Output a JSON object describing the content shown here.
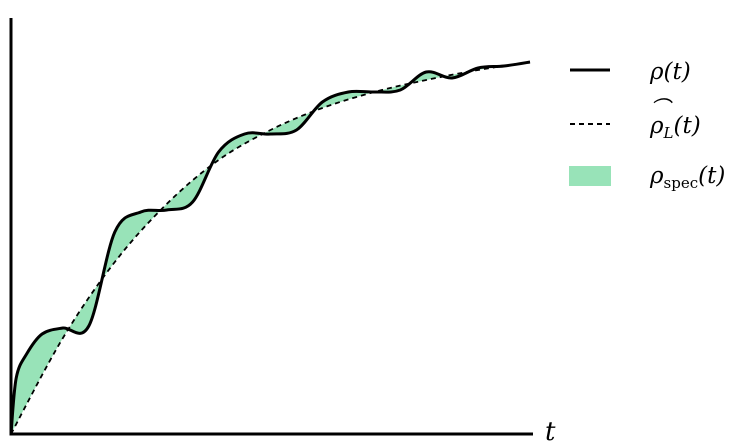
{
  "chart_data": {
    "type": "area",
    "title": "",
    "xlabel": "t",
    "ylabel": "",
    "grid": false,
    "legend_position": "right",
    "series": [
      {
        "name": "ρ(t)",
        "style": "solid",
        "color": "#000000",
        "x": [
          0,
          0.01,
          0.03,
          0.06,
          0.1,
          0.15,
          0.2,
          0.25,
          0.3,
          0.35,
          0.4,
          0.45,
          0.5,
          0.55,
          0.6,
          0.65,
          0.7,
          0.75,
          0.8,
          0.85,
          0.9,
          0.95,
          1.0
        ],
        "y": [
          0.0,
          0.14,
          0.2,
          0.25,
          0.265,
          0.27,
          0.505,
          0.555,
          0.56,
          0.58,
          0.705,
          0.75,
          0.75,
          0.76,
          0.83,
          0.855,
          0.855,
          0.86,
          0.905,
          0.89,
          0.915,
          0.92,
          0.93
        ]
      },
      {
        "name": "ρ̂_L(t)",
        "style": "dashed",
        "color": "#000000",
        "x": [
          0,
          0.1,
          0.2,
          0.3,
          0.4,
          0.5,
          0.6,
          0.7,
          0.8,
          0.9,
          1.0
        ],
        "y": [
          0.0,
          0.24,
          0.43,
          0.575,
          0.685,
          0.76,
          0.815,
          0.855,
          0.885,
          0.91,
          0.93
        ]
      },
      {
        "name": "ρspec(t)",
        "style": "filled-region",
        "color": "#98e3b8",
        "description_of": "area between ρ(t) and ρ̂_L(t)"
      }
    ],
    "xlim": [
      0,
      1
    ],
    "ylim": [
      0,
      1
    ]
  },
  "legend": {
    "items": [
      {
        "base": "ρ",
        "arg": "(t)"
      },
      {
        "base": "ρ",
        "sub": "L",
        "arg": "(t)"
      },
      {
        "base": "ρ",
        "sub": "spec",
        "arg": "(t)"
      }
    ]
  },
  "axes": {
    "x_label": "t"
  },
  "colors": {
    "fill": "#98e3b8",
    "line": "#000000"
  }
}
